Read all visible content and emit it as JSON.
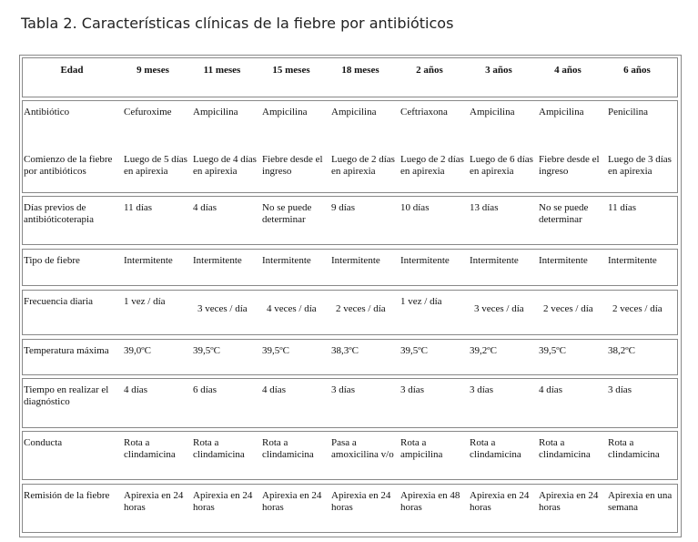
{
  "title": "Tabla 2. Características clínicas de la fiebre por antibióticos",
  "header": [
    "Edad",
    "9 meses",
    "11 meses",
    "15 meses",
    "18 meses",
    "2 años",
    "3 años",
    "4 años",
    "6 años"
  ],
  "rows": [
    {
      "label": "Antibiótico",
      "values": [
        "Cefuroxime",
        "Ampicilina",
        "Ampicilina",
        "Ampicilina",
        "Ceftriaxona",
        "Ampicilina",
        "Ampicilina",
        "Penicilina"
      ]
    },
    {
      "label": "Comienzo de la fiebre por antibióticos",
      "values": [
        "Luego de 5 días en apirexia",
        "Luego de 4 días en apirexia",
        "Fiebre desde el ingreso",
        "Luego de 2 días en apirexia",
        "Luego de 2 días en apirexia",
        "Luego de 6 días en apirexia",
        "Fiebre desde el ingreso",
        "Luego de 3 días en apirexia"
      ]
    },
    {
      "label": "Días previos de antibióticoterapia",
      "values": [
        "11 días",
        "4 días",
        "No se puede determinar",
        "9 días",
        "10 días",
        "13 días",
        "No se puede determinar",
        "11 días"
      ]
    },
    {
      "label": "Tipo de fiebre",
      "values": [
        "Intermitente",
        "Intermitente",
        "Intermitente",
        "Intermitente",
        "Intermitente",
        "Intermitente",
        "Intermitente",
        "Intermitente"
      ]
    },
    {
      "label": "Frecuencia diaria",
      "values": [
        "1 vez / día",
        "3 veces / día",
        "4 veces / día",
        "2 veces / día",
        "1 vez / día",
        "3 veces / día",
        "2 veces / día",
        "2 veces / día"
      ]
    },
    {
      "label": "Temperatura máxima",
      "values": [
        "39,0ºC",
        "39,5ºC",
        "39,5ºC",
        "38,3ºC",
        "39,5ºC",
        "39,2ºC",
        "39,5ºC",
        "38,2ºC"
      ]
    },
    {
      "label": "Tiempo en realizar el diagnóstico",
      "values": [
        "4 días",
        "6 días",
        "4 días",
        "3 días",
        "3 días",
        "3 días",
        "4 días",
        "3 días"
      ]
    },
    {
      "label": "Conducta",
      "values": [
        "Rota a clindamicina",
        "Rota a clindamicina",
        "Rota a clindamicina",
        "Pasa a amoxicilina v/o",
        "Rota a ampicilina",
        "Rota a clindamicina",
        "Rota a clindamicina",
        "Rota a clindamicina"
      ]
    },
    {
      "label": "Remisión de la fiebre",
      "values": [
        "Apirexia en 24 horas",
        "Apirexia en 24 horas",
        "Apirexia en 24 horas",
        "Apirexia en 24 horas",
        "Apirexia en 48 horas",
        "Apirexia en 24 horas",
        "Apirexia en 24 horas",
        "Apirexia en una semana"
      ]
    }
  ]
}
